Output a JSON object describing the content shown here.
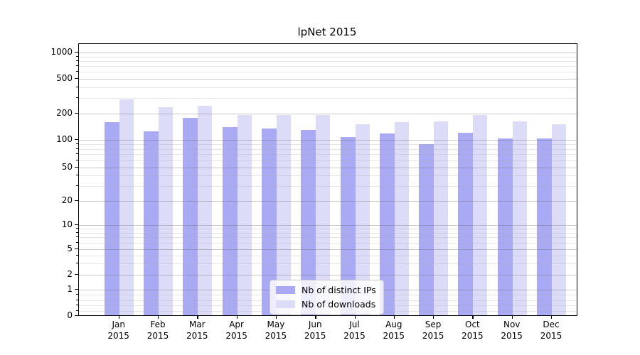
{
  "title": "lpNet 2015",
  "chart_data": {
    "type": "bar",
    "title": "lpNet 2015",
    "categories": [
      {
        "month": "Jan",
        "year": "2015"
      },
      {
        "month": "Feb",
        "year": "2015"
      },
      {
        "month": "Mar",
        "year": "2015"
      },
      {
        "month": "Apr",
        "year": "2015"
      },
      {
        "month": "May",
        "year": "2015"
      },
      {
        "month": "Jun",
        "year": "2015"
      },
      {
        "month": "Jul",
        "year": "2015"
      },
      {
        "month": "Aug",
        "year": "2015"
      },
      {
        "month": "Sep",
        "year": "2015"
      },
      {
        "month": "Oct",
        "year": "2015"
      },
      {
        "month": "Nov",
        "year": "2015"
      },
      {
        "month": "Dec",
        "year": "2015"
      }
    ],
    "series": [
      {
        "name": "Nb of distinct IPs",
        "color": "#a9a9f4",
        "values": [
          160,
          125,
          180,
          140,
          135,
          131,
          108,
          118,
          90,
          120,
          104,
          104
        ]
      },
      {
        "name": "Nb of downloads",
        "color": "#dcdcf9",
        "values": [
          290,
          235,
          245,
          192,
          191,
          193,
          152,
          161,
          163,
          192,
          164,
          152
        ]
      }
    ],
    "yscale": "symlog",
    "yticks": [
      0,
      1,
      2,
      5,
      10,
      20,
      50,
      100,
      200,
      500,
      1000
    ],
    "yminorticks": [
      0.2,
      0.4,
      0.6,
      0.8,
      3,
      4,
      6,
      7,
      8,
      9,
      30,
      40,
      60,
      70,
      80,
      90,
      300,
      400,
      600,
      700,
      800,
      900
    ],
    "ylim": [
      0,
      1260
    ],
    "grid": true,
    "legend_position": "lower center",
    "colors": {
      "bar_dark": "#a9a9f4",
      "bar_light": "#dcdcf9",
      "grid_major": "#c9c9c9",
      "grid_minor": "#e6e6e6",
      "spine": "#000000"
    }
  }
}
